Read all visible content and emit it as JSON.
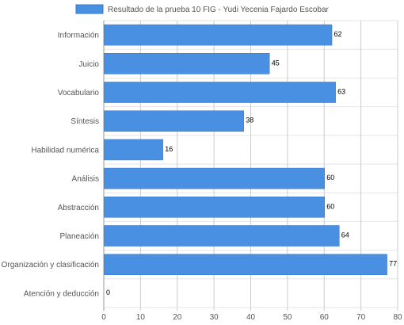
{
  "chart_data": {
    "type": "bar",
    "orientation": "horizontal",
    "categories": [
      "Información",
      "Juicio",
      "Vocabulario",
      "Síntesis",
      "Habilidad numérica",
      "Análisis",
      "Abstracción",
      "Planeación",
      "Organización y clasificación",
      "Atención y deducción"
    ],
    "series": [
      {
        "name": "Resultado de la prueba 10 FIG - Yudi Yecenia Fajardo Escobar",
        "values": [
          62,
          45,
          63,
          38,
          16,
          60,
          60,
          64,
          77,
          0
        ],
        "color": "#4a90e2"
      }
    ],
    "xlim": [
      0,
      80
    ],
    "xticks": [
      0,
      10,
      20,
      30,
      40,
      50,
      60,
      70,
      80
    ],
    "grid": true,
    "legend": "top",
    "data_labels": true
  }
}
